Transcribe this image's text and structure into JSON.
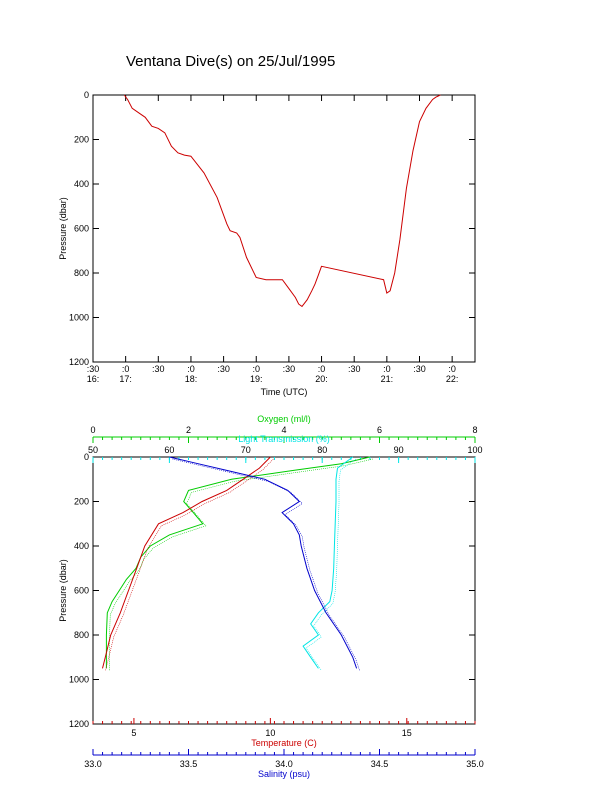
{
  "title": "Ventana Dive(s) on 25/Jul/1995",
  "colors": {
    "axis": "#000000",
    "trace": "#cc0000",
    "oxygen": "#00cc00",
    "transmission": "#00e5e5",
    "temperature": "#cc0000",
    "salinity": "#0000cc"
  },
  "chart_data": [
    {
      "type": "line",
      "name": "time-pressure",
      "xlabel": "Time (UTC)",
      "ylabel": "Pressure (dbar)",
      "ylim": [
        1200,
        0
      ],
      "xlim_hours": [
        16.5,
        22.35
      ],
      "x_ticks": [
        {
          "h": 16.5,
          "top": ":30",
          "bottom": "16:"
        },
        {
          "h": 17.0,
          "top": ":0",
          "bottom": "17:"
        },
        {
          "h": 17.5,
          "top": ":30",
          "bottom": ""
        },
        {
          "h": 18.0,
          "top": ":0",
          "bottom": "18:"
        },
        {
          "h": 18.5,
          "top": ":30",
          "bottom": ""
        },
        {
          "h": 19.0,
          "top": ":0",
          "bottom": "19:"
        },
        {
          "h": 19.5,
          "top": ":30",
          "bottom": ""
        },
        {
          "h": 20.0,
          "top": ":0",
          "bottom": "20:"
        },
        {
          "h": 20.5,
          "top": ":30",
          "bottom": ""
        },
        {
          "h": 21.0,
          "top": ":0",
          "bottom": "21:"
        },
        {
          "h": 21.5,
          "top": ":30",
          "bottom": ""
        },
        {
          "h": 22.0,
          "top": ":0",
          "bottom": "22:"
        }
      ],
      "y_ticks": [
        "0",
        "200",
        "400",
        "600",
        "800",
        "1000",
        "1200"
      ],
      "series": [
        {
          "time_hours": [
            16.98,
            17.03,
            17.1,
            17.2,
            17.3,
            17.4,
            17.5,
            17.6,
            17.7,
            17.8,
            17.9,
            18.0,
            18.2,
            18.4,
            18.55,
            18.6,
            18.7,
            18.75,
            18.85,
            19.0,
            19.15,
            19.3,
            19.4,
            19.5,
            19.6,
            19.65,
            19.7,
            19.78,
            19.85,
            19.9,
            19.95,
            20.0,
            20.0,
            20.95,
            21.0,
            21.05,
            21.12,
            21.2,
            21.3,
            21.4,
            21.5,
            21.6,
            21.7,
            21.75,
            21.82
          ],
          "pressure": [
            0,
            20,
            60,
            80,
            100,
            140,
            150,
            170,
            230,
            260,
            270,
            275,
            350,
            460,
            580,
            610,
            620,
            640,
            730,
            820,
            830,
            830,
            830,
            870,
            910,
            940,
            950,
            920,
            880,
            850,
            810,
            770,
            770,
            830,
            890,
            880,
            800,
            650,
            420,
            250,
            120,
            60,
            20,
            10,
            0
          ]
        }
      ]
    },
    {
      "type": "line",
      "name": "profiles",
      "ylabel": "Pressure (dbar)",
      "ylim": [
        1200,
        0
      ],
      "y_ticks": [
        "0",
        "200",
        "400",
        "600",
        "800",
        "1000",
        "1200"
      ],
      "axes": [
        {
          "key": "oxygen",
          "label": "Oxygen (ml/l)",
          "min": 0,
          "max": 8,
          "ticks": [
            "0",
            "2",
            "4",
            "6",
            "8"
          ],
          "position": "top"
        },
        {
          "key": "transmission",
          "label": "Light Transmission (%)",
          "min": 50,
          "max": 100,
          "ticks": [
            "50",
            "60",
            "70",
            "80",
            "90",
            "100"
          ],
          "position": "top"
        },
        {
          "key": "temperature",
          "label": "Temperature (C)",
          "min": 3.5,
          "max": 17.5,
          "ticks": [
            "5",
            "10",
            "15"
          ],
          "position": "bottom"
        },
        {
          "key": "salinity",
          "label": "Salinity (psu)",
          "min": 33.0,
          "max": 35.0,
          "ticks": [
            "33.0",
            "33.5",
            "34.0",
            "34.5",
            "35.0"
          ],
          "position": "bottom"
        }
      ],
      "series": [
        {
          "key": "oxygen",
          "pressure": [
            0,
            30,
            60,
            100,
            150,
            200,
            250,
            300,
            350,
            400,
            450,
            500,
            550,
            600,
            650,
            700,
            800,
            900,
            950
          ],
          "values": [
            5.8,
            5.2,
            4.2,
            2.9,
            2.0,
            1.9,
            2.1,
            2.3,
            1.6,
            1.2,
            1.0,
            0.9,
            0.7,
            0.55,
            0.4,
            0.3,
            0.28,
            0.28,
            0.28
          ]
        },
        {
          "key": "transmission",
          "pressure": [
            0,
            50,
            100,
            200,
            300,
            400,
            500,
            600,
            650,
            700,
            750,
            800,
            850,
            900,
            950
          ],
          "values": [
            84,
            82,
            81.8,
            81.8,
            81.7,
            81.6,
            81.5,
            81.3,
            81.0,
            79.5,
            78.5,
            79.5,
            77.5,
            78.5,
            79.5
          ]
        },
        {
          "key": "temperature",
          "pressure": [
            0,
            50,
            100,
            150,
            200,
            250,
            300,
            400,
            500,
            600,
            700,
            800,
            900,
            950
          ],
          "values": [
            10.0,
            9.6,
            9.0,
            8.4,
            7.5,
            6.8,
            5.9,
            5.4,
            5.1,
            4.8,
            4.5,
            4.15,
            3.95,
            3.85
          ]
        },
        {
          "key": "salinity",
          "pressure": [
            0,
            30,
            60,
            100,
            150,
            200,
            250,
            300,
            350,
            400,
            500,
            600,
            700,
            800,
            900,
            950
          ],
          "values": [
            33.4,
            33.55,
            33.7,
            33.9,
            34.02,
            34.08,
            33.99,
            34.05,
            34.08,
            34.09,
            34.12,
            34.16,
            34.22,
            34.3,
            34.36,
            34.38
          ]
        }
      ]
    }
  ]
}
